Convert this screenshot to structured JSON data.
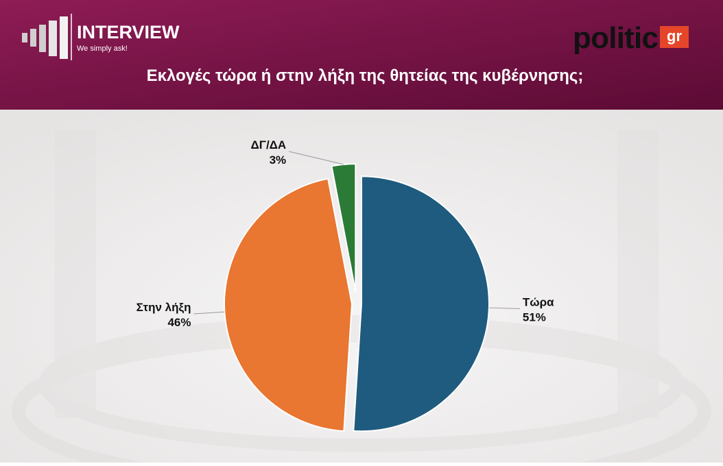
{
  "header": {
    "brand": "INTERVIEW",
    "tagline": "We simply ask!",
    "logo": "politic",
    "logo_suffix": "gr"
  },
  "chart_data": {
    "type": "pie",
    "title": "Εκλογές τώρα ή στην λήξη της θητείας της κυβέρνησης;",
    "categories": [
      "Τώρα",
      "Στην λήξη",
      "ΔΓ/ΔΑ"
    ],
    "values": [
      51,
      46,
      3
    ],
    "value_labels": [
      "51%",
      "46%",
      "3%"
    ],
    "colors": [
      "#1f5b7e",
      "#e97631",
      "#2b7b36"
    ]
  }
}
